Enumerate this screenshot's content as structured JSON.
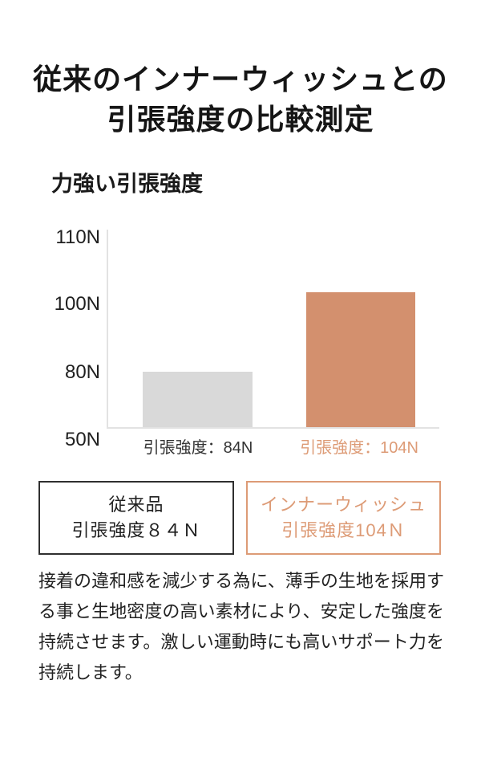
{
  "page": {
    "title_line1": "従来のインナーウィッシュとの",
    "title_line2": "引張強度の比較測定"
  },
  "chart_data": {
    "type": "bar",
    "title": "力強い引張強度",
    "unit": "N",
    "categories": [
      "従来品",
      "インナーウィッシュ"
    ],
    "values": [
      84,
      104
    ],
    "y_ticks": [
      "110N",
      "100N",
      "80N",
      "50N"
    ],
    "y_tick_values": [
      110,
      100,
      80,
      50
    ],
    "ylim": [
      50,
      113
    ],
    "grid": false,
    "legend_position": "below",
    "bars": [
      {
        "name": "conventional",
        "label": "引張強度：84N",
        "value": 84,
        "color": "#d9d9d9",
        "label_color": "#333333",
        "height_pct": 27.9
      },
      {
        "name": "innerwish",
        "label": "引張強度：104N",
        "value": 104,
        "color": "#d3906e",
        "label_color": "#dd9b76",
        "height_pct": 68.0
      }
    ]
  },
  "legend": {
    "conventional": {
      "line1": "従来品",
      "line2": "引張強度８４Ｎ",
      "border_color": "#2f2f2f",
      "text_color": "#1f1f1f"
    },
    "innerwish": {
      "line1": "インナーウィッシュ",
      "line2": "引張強度104Ｎ",
      "border_color": "#dd9b76",
      "text_color": "#dd9b76"
    }
  },
  "description": "接着の違和感を減少する為に、薄手の生地を採用する事と生地密度の高い素材により、安定した強度を持続させます。激しい運動時にも高いサポート力を持続します。"
}
